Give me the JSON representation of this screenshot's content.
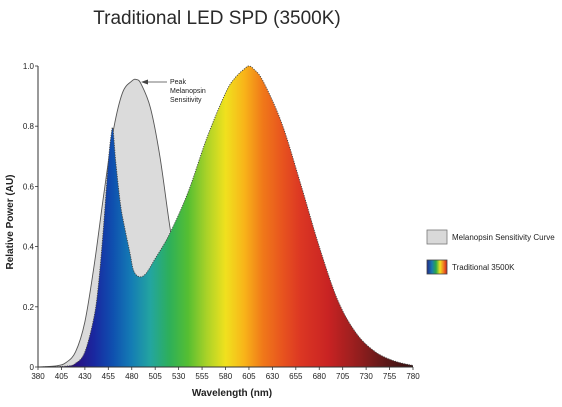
{
  "chart_data": {
    "type": "area",
    "title": "Traditional LED SPD (3500K)",
    "xlabel": "Wavelength (nm)",
    "ylabel": "Relative Power (AU)",
    "xlim": [
      380,
      780
    ],
    "ylim": [
      0,
      1.0
    ],
    "x_ticks": [
      "380",
      "405",
      "430",
      "455",
      "480",
      "505",
      "530",
      "555",
      "580",
      "605",
      "630",
      "655",
      "680",
      "705",
      "730",
      "755",
      "780"
    ],
    "y_ticks": [
      "0",
      "0.2",
      "0.4",
      "0.6",
      "0.8",
      "1.0"
    ],
    "grid": false,
    "legend_placement": "right",
    "series": [
      {
        "name": "Melanopsin Sensitivity Curve",
        "fill": "#d9d9d9",
        "stroke": "#555555",
        "x": [
          380,
          400,
          410,
          420,
          430,
          440,
          450,
          460,
          470,
          480,
          485,
          490,
          500,
          510,
          520,
          530,
          540,
          550,
          560,
          570,
          580,
          590,
          600
        ],
        "y": [
          0,
          0.004,
          0.015,
          0.05,
          0.15,
          0.34,
          0.57,
          0.78,
          0.91,
          0.95,
          0.955,
          0.94,
          0.86,
          0.7,
          0.48,
          0.28,
          0.14,
          0.07,
          0.035,
          0.015,
          0.006,
          0.002,
          0
        ]
      },
      {
        "name": "Traditional 3500K",
        "fill": "spectrum",
        "stroke": "#444444",
        "x": [
          380,
          410,
          420,
          430,
          440,
          445,
          450,
          455,
          458,
          460,
          463,
          468,
          472,
          478,
          482,
          488,
          495,
          505,
          520,
          540,
          560,
          580,
          590,
          600,
          605,
          610,
          620,
          640,
          660,
          680,
          700,
          720,
          740,
          760,
          780
        ],
        "y": [
          0,
          0.003,
          0.012,
          0.05,
          0.17,
          0.29,
          0.47,
          0.68,
          0.77,
          0.79,
          0.68,
          0.54,
          0.47,
          0.38,
          0.32,
          0.3,
          0.31,
          0.36,
          0.44,
          0.58,
          0.76,
          0.91,
          0.96,
          0.99,
          1.0,
          0.99,
          0.95,
          0.81,
          0.61,
          0.4,
          0.22,
          0.11,
          0.05,
          0.02,
          0.005
        ]
      }
    ],
    "annotations": [
      {
        "lines": [
          "Peak",
          "Melanopsin",
          "Sensitivity"
        ],
        "x": 485,
        "y": 0.955
      }
    ],
    "legend": [
      {
        "label": "Melanopsin Sensitivity Curve",
        "swatch": "gray"
      },
      {
        "label": "Traditional 3500K",
        "swatch": "spectrum"
      }
    ]
  }
}
